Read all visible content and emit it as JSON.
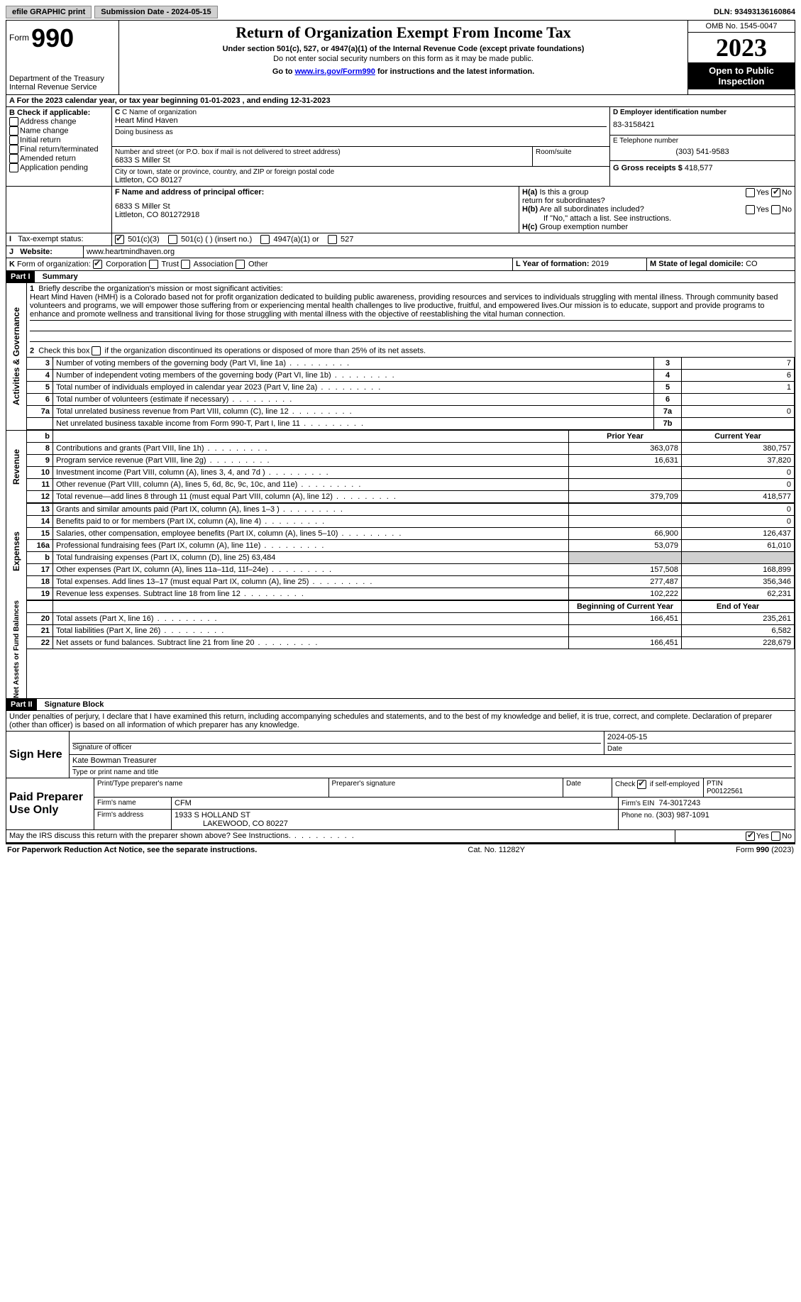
{
  "topbar": {
    "efile": "efile GRAPHIC print",
    "submission_label": "Submission Date - 2024-05-15",
    "dln_label": "DLN: 93493136160864"
  },
  "header": {
    "form_prefix": "Form",
    "form_number": "990",
    "dept": "Department of the Treasury",
    "irs": "Internal Revenue Service",
    "title": "Return of Organization Exempt From Income Tax",
    "sub1": "Under section 501(c), 527, or 4947(a)(1) of the Internal Revenue Code (except private foundations)",
    "sub2": "Do not enter social security numbers on this form as it may be made public.",
    "sub3_prefix": "Go to ",
    "sub3_link": "www.irs.gov/Form990",
    "sub3_suffix": " for instructions and the latest information.",
    "omb": "OMB No. 1545-0047",
    "year": "2023",
    "open": "Open to Public Inspection"
  },
  "lineA": "For the 2023 calendar year, or tax year beginning 01-01-2023    , and ending 12-31-2023",
  "sectionB": {
    "title": "B Check if applicable:",
    "items": [
      "Address change",
      "Name change",
      "Initial return",
      "Final return/terminated",
      "Amended return",
      "Application pending"
    ]
  },
  "sectionC": {
    "name_label": "C Name of organization",
    "name": "Heart Mind Haven",
    "dba": "Doing business as",
    "addr_label": "Number and street (or P.O. box if mail is not delivered to street address)",
    "addr": "6833 S Miller St",
    "room_label": "Room/suite",
    "city_label": "City or town, state or province, country, and ZIP or foreign postal code",
    "city": "Littleton, CO  80127"
  },
  "sectionD": {
    "label": "D Employer identification number",
    "value": "83-3158421"
  },
  "sectionE": {
    "label": "E Telephone number",
    "value": "(303) 541-9583"
  },
  "sectionG": {
    "label": "G Gross receipts $",
    "value": "418,577"
  },
  "sectionF": {
    "label": "F  Name and address of principal officer:",
    "addr1": "6833 S Miller St",
    "addr2": "Littleton, CO  801272918"
  },
  "sectionH": {
    "a": "Is this a group return for subordinates?",
    "b": "Are all subordinates included?",
    "b_note": "If \"No,\" attach a list. See instructions.",
    "c": "Group exemption number"
  },
  "sectionI": {
    "label": "Tax-exempt status:",
    "opt1": "501(c)(3)",
    "opt2": "501(c) (  ) (insert no.)",
    "opt3": "4947(a)(1) or",
    "opt4": "527"
  },
  "sectionJ": {
    "label": "Website:",
    "value": "www.heartmindhaven.org"
  },
  "sectionK": {
    "label": "Form of organization:",
    "opts": [
      "Corporation",
      "Trust",
      "Association",
      "Other"
    ]
  },
  "sectionL": {
    "label": "L Year of formation:",
    "value": "2019"
  },
  "sectionM": {
    "label": "M State of legal domicile:",
    "value": "CO"
  },
  "part1": {
    "header": "Part I",
    "title": "Summary",
    "line1_label": "Briefly describe the organization's mission or most significant activities:",
    "line1_text": "Heart Mind Haven (HMH) is a Colorado based not for profit organization dedicated to building public awareness, providing resources and services to individuals struggling with mental illness. Through community based volunteers and programs, we will empower those suffering from or experiencing mental health challenges to live productive, fruitful, and empowered lives.Our mission is to educate, support and provide programs to enhance and promote wellness and transitional living for those struggling with mental illness with the objective of reestablishing the vital human connection.",
    "line2": "Check this box    if the organization discontinued its operations or disposed of more than 25% of its net assets.",
    "side_gov": "Activities & Governance",
    "side_rev": "Revenue",
    "side_exp": "Expenses",
    "side_net": "Net Assets or Fund Balances",
    "rows_gov": [
      {
        "n": "3",
        "t": "Number of voting members of the governing body (Part VI, line 1a)",
        "l": "3",
        "v": "7"
      },
      {
        "n": "4",
        "t": "Number of independent voting members of the governing body (Part VI, line 1b)",
        "l": "4",
        "v": "6"
      },
      {
        "n": "5",
        "t": "Total number of individuals employed in calendar year 2023 (Part V, line 2a)",
        "l": "5",
        "v": "1"
      },
      {
        "n": "6",
        "t": "Total number of volunteers (estimate if necessary)",
        "l": "6",
        "v": ""
      },
      {
        "n": "7a",
        "t": "Total unrelated business revenue from Part VIII, column (C), line 12",
        "l": "7a",
        "v": "0"
      },
      {
        "n": "",
        "t": "Net unrelated business taxable income from Form 990-T, Part I, line 11",
        "l": "7b",
        "v": ""
      }
    ],
    "col_prior": "Prior Year",
    "col_current": "Current Year",
    "rows_rev": [
      {
        "n": "8",
        "t": "Contributions and grants (Part VIII, line 1h)",
        "p": "363,078",
        "c": "380,757"
      },
      {
        "n": "9",
        "t": "Program service revenue (Part VIII, line 2g)",
        "p": "16,631",
        "c": "37,820"
      },
      {
        "n": "10",
        "t": "Investment income (Part VIII, column (A), lines 3, 4, and 7d )",
        "p": "",
        "c": "0"
      },
      {
        "n": "11",
        "t": "Other revenue (Part VIII, column (A), lines 5, 6d, 8c, 9c, 10c, and 11e)",
        "p": "",
        "c": "0"
      },
      {
        "n": "12",
        "t": "Total revenue—add lines 8 through 11 (must equal Part VIII, column (A), line 12)",
        "p": "379,709",
        "c": "418,577"
      }
    ],
    "rows_exp": [
      {
        "n": "13",
        "t": "Grants and similar amounts paid (Part IX, column (A), lines 1–3 )",
        "p": "",
        "c": "0"
      },
      {
        "n": "14",
        "t": "Benefits paid to or for members (Part IX, column (A), line 4)",
        "p": "",
        "c": "0"
      },
      {
        "n": "15",
        "t": "Salaries, other compensation, employee benefits (Part IX, column (A), lines 5–10)",
        "p": "66,900",
        "c": "126,437"
      },
      {
        "n": "16a",
        "t": "Professional fundraising fees (Part IX, column (A), line 11e)",
        "p": "53,079",
        "c": "61,010"
      }
    ],
    "line16b": "Total fundraising expenses (Part IX, column (D), line 25) 63,484",
    "rows_exp2": [
      {
        "n": "17",
        "t": "Other expenses (Part IX, column (A), lines 11a–11d, 11f–24e)",
        "p": "157,508",
        "c": "168,899"
      },
      {
        "n": "18",
        "t": "Total expenses. Add lines 13–17 (must equal Part IX, column (A), line 25)",
        "p": "277,487",
        "c": "356,346"
      },
      {
        "n": "19",
        "t": "Revenue less expenses. Subtract line 18 from line 12",
        "p": "102,222",
        "c": "62,231"
      }
    ],
    "col_begin": "Beginning of Current Year",
    "col_end": "End of Year",
    "rows_net": [
      {
        "n": "20",
        "t": "Total assets (Part X, line 16)",
        "p": "166,451",
        "c": "235,261"
      },
      {
        "n": "21",
        "t": "Total liabilities (Part X, line 26)",
        "p": "",
        "c": "6,582"
      },
      {
        "n": "22",
        "t": "Net assets or fund balances. Subtract line 21 from line 20",
        "p": "166,451",
        "c": "228,679"
      }
    ]
  },
  "part2": {
    "header": "Part II",
    "title": "Signature Block",
    "decl": "Under penalties of perjury, I declare that I have examined this return, including accompanying schedules and statements, and to the best of my knowledge and belief, it is true, correct, and complete. Declaration of preparer (other than officer) is based on all information of which preparer has any knowledge.",
    "sign_here": "Sign Here",
    "sig_officer": "Signature of officer",
    "sig_date": "2024-05-15",
    "date_label": "Date",
    "officer_name": "Kate Bowman  Treasurer",
    "type_name": "Type or print name and title",
    "paid_prep": "Paid Preparer Use Only",
    "prep_name_label": "Print/Type preparer's name",
    "prep_sig_label": "Preparer's signature",
    "check_self": "Check      if self-employed",
    "ptin_label": "PTIN",
    "ptin": "P00122561",
    "firm_name_label": "Firm's name",
    "firm_name": "CFM",
    "firm_ein_label": "Firm's EIN",
    "firm_ein": "74-3017243",
    "firm_addr_label": "Firm's address",
    "firm_addr1": "1933 S HOLLAND ST",
    "firm_addr2": "LAKEWOOD, CO  80227",
    "phone_label": "Phone no.",
    "phone": "(303) 987-1091",
    "discuss": "May the IRS discuss this return with the preparer shown above? See Instructions.",
    "yes": "Yes",
    "no": "No"
  },
  "footer": {
    "left": "For Paperwork Reduction Act Notice, see the separate instructions.",
    "center": "Cat. No. 11282Y",
    "right": "Form 990 (2023)"
  }
}
